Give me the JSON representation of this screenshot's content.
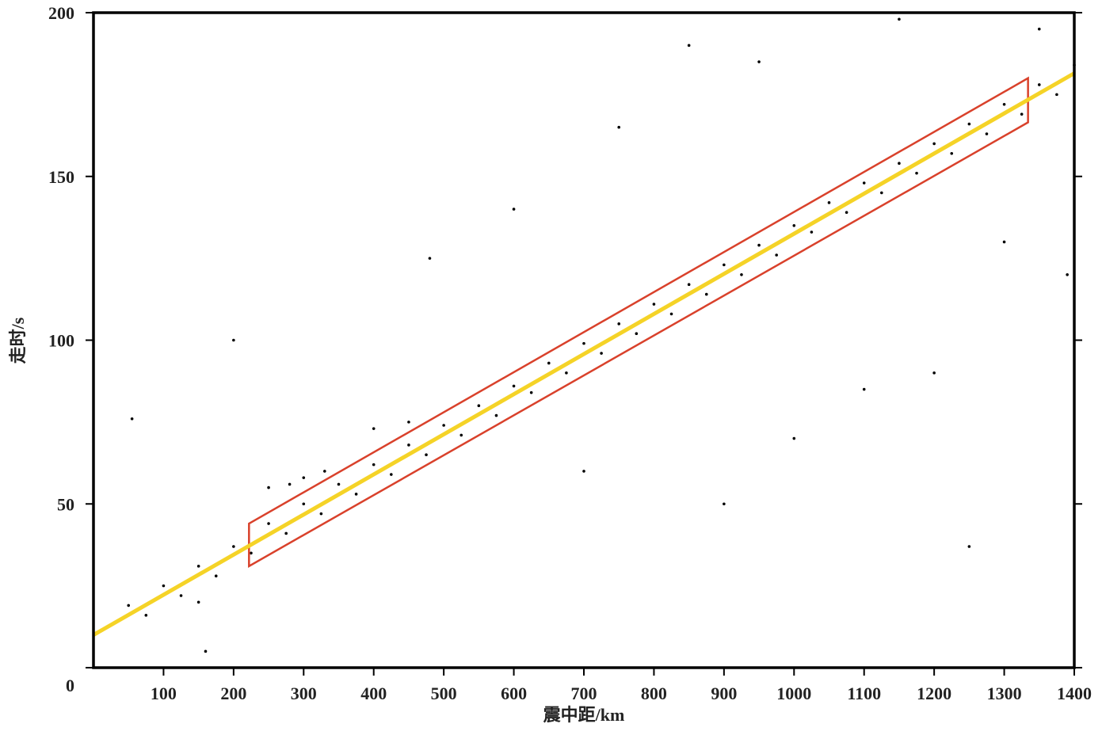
{
  "chart_data": {
    "type": "scatter",
    "xlabel": "震中距/km",
    "ylabel": "走时/s",
    "xlim": [
      0,
      1400
    ],
    "ylim": [
      0,
      200
    ],
    "xticks": [
      100,
      200,
      300,
      400,
      500,
      600,
      700,
      800,
      900,
      1000,
      1100,
      1200,
      1300,
      1400
    ],
    "yticks": [
      0,
      50,
      100,
      150,
      200
    ],
    "color": "#000000",
    "x": [
      50,
      100,
      150,
      200,
      250,
      300,
      350,
      400,
      450,
      500,
      550,
      600,
      650,
      700,
      750,
      800,
      850,
      900,
      950,
      1000,
      1050,
      1100,
      1150,
      1200,
      1250,
      1300,
      1350,
      1400,
      75,
      125,
      175,
      225,
      275,
      325,
      375,
      425,
      475,
      525,
      575,
      625,
      675,
      725,
      775,
      825,
      875,
      925,
      975,
      1025,
      1075,
      1125,
      1175,
      1225,
      1275,
      1325,
      1375,
      300,
      280,
      250,
      330,
      400,
      450,
      160,
      200,
      480,
      600,
      750,
      850,
      950,
      1000,
      1100,
      1200,
      1300,
      900,
      700,
      1350,
      1150,
      55,
      150,
      1250,
      1390
    ],
    "y": [
      19,
      25,
      31,
      37,
      44,
      50,
      56,
      62,
      68,
      74,
      80,
      86,
      93,
      99,
      105,
      111,
      117,
      123,
      129,
      135,
      142,
      148,
      154,
      160,
      166,
      172,
      178,
      184,
      16,
      22,
      28,
      35,
      41,
      47,
      53,
      59,
      65,
      71,
      77,
      84,
      90,
      96,
      102,
      108,
      114,
      120,
      126,
      133,
      139,
      145,
      151,
      157,
      163,
      169,
      175,
      58,
      56,
      55,
      60,
      73,
      75,
      5,
      100,
      125,
      140,
      165,
      190,
      185,
      70,
      85,
      90,
      130,
      50,
      60,
      195,
      198,
      76,
      20,
      37,
      120
    ],
    "fit_line": {
      "color": "#f5d327",
      "x": [
        0,
        1400
      ],
      "y": [
        10,
        181.5
      ]
    },
    "region": {
      "color": "#d9412b",
      "x": [
        222,
        1334,
        1334,
        222
      ],
      "y": [
        44,
        180,
        166.5,
        31
      ]
    }
  }
}
